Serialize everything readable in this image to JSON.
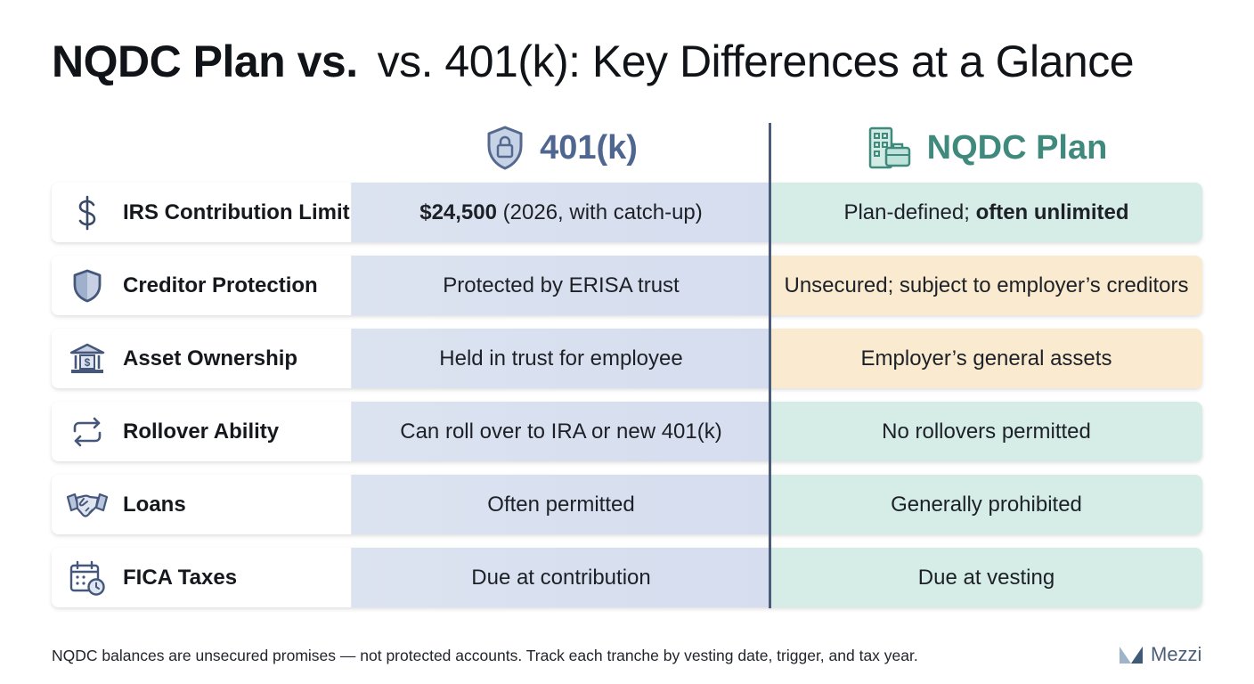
{
  "title": {
    "bold_part": "NQDC Plan vs.",
    "regular_part": "vs. 401(k): Key Differences at a Glance"
  },
  "columns": {
    "left": {
      "label": "401(k)",
      "icon": "shield-lock-icon"
    },
    "right": {
      "label": "NQDC Plan",
      "icon": "building-briefcase-icon"
    }
  },
  "rows": [
    {
      "label": "IRS Contribution Limit",
      "icon": "dollar-sign-icon",
      "k401_bold": "$24,500",
      "k401_rest": " (2026, with catch-up)",
      "nqdc_rest": "Plan-defined; ",
      "nqdc_bold": "often unlimited",
      "nqdc_tone": "teal"
    },
    {
      "label": "Creditor Protection",
      "icon": "shield-icon",
      "k401": "Protected by ERISA trust",
      "nqdc": "Unsecured; subject to employer’s creditors",
      "nqdc_tone": "peach"
    },
    {
      "label": "Asset Ownership",
      "icon": "bank-icon",
      "k401": "Held in trust for employee",
      "nqdc": "Employer’s general assets",
      "nqdc_tone": "peach"
    },
    {
      "label": "Rollover Ability",
      "icon": "refresh-arrows-icon",
      "k401": "Can roll over to IRA or new 401(k)",
      "nqdc": "No rollovers permitted",
      "nqdc_tone": "teal"
    },
    {
      "label": "Loans",
      "icon": "handshake-icon",
      "k401": "Often permitted",
      "nqdc": "Generally prohibited",
      "nqdc_tone": "teal"
    },
    {
      "label": "FICA Taxes",
      "icon": "calendar-clock-icon",
      "k401": "Due at contribution",
      "nqdc": "Due at vesting",
      "nqdc_tone": "teal"
    }
  ],
  "footer": "NQDC balances are unsecured promises — not protected accounts. Track each tranche by vesting date, trigger, and tax year.",
  "brand": {
    "name": "Mezzi",
    "icon": "mezzi-logo-icon"
  },
  "colors": {
    "k401_accent": "#4f6690",
    "nqdc_accent": "#3f8a7d",
    "k401_cell": "#d8e0ef",
    "teal_cell": "#d5ece7",
    "peach_cell": "#faebd0",
    "divider": "#4a5c7a"
  }
}
